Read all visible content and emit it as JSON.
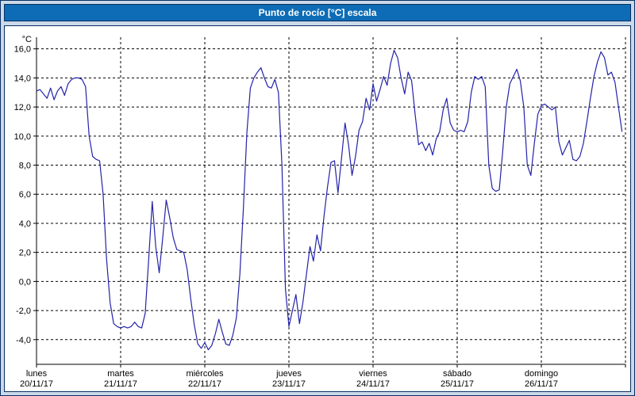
{
  "window": {
    "title": "Punto de rocío [°C] escala"
  },
  "colors": {
    "outer_background": "#cbd9e8",
    "titlebar_background": "#0d6cb5",
    "titlebar_text": "#ffffff",
    "panel_background": "#ffffff",
    "border": "#0a2f63",
    "line": "#2323aa",
    "grid": "#000000"
  },
  "chart_data": {
    "type": "line",
    "title": "Punto de rocío [°C] escala",
    "y_unit_label": "°C",
    "legend": "none",
    "grid": {
      "style": "dashed",
      "color": "#000000"
    },
    "y_axis": {
      "min": -5.7,
      "max": 16.8,
      "tick_values": [
        16,
        14,
        12,
        10,
        8,
        6,
        4,
        2,
        0,
        -2,
        -4
      ],
      "tick_labels": [
        "16,0",
        "14,0",
        "12,0",
        "10,0",
        "8,0",
        "6,0",
        "4,0",
        "2,0",
        "0,0",
        "-2,0",
        "-4,0"
      ]
    },
    "x_axis": {
      "range_days": [
        0,
        7
      ],
      "days": [
        {
          "name": "lunes",
          "date": "20/11/17"
        },
        {
          "name": "martes",
          "date": "21/11/17"
        },
        {
          "name": "miércoles",
          "date": "22/11/17"
        },
        {
          "name": "jueves",
          "date": "23/11/17"
        },
        {
          "name": "viernes",
          "date": "24/11/17"
        },
        {
          "name": "sábado",
          "date": "25/11/17"
        },
        {
          "name": "domingo",
          "date": "26/11/17"
        }
      ]
    },
    "series": [
      {
        "name": "Punto de rocío",
        "color": "#2323aa",
        "samples_per_day": 24,
        "values": [
          13.1,
          13.2,
          12.9,
          12.6,
          13.3,
          12.5,
          13.1,
          13.4,
          12.8,
          13.6,
          13.9,
          14.0,
          14.0,
          13.9,
          13.4,
          10.0,
          8.6,
          8.4,
          8.3,
          6.0,
          1.5,
          -1.5,
          -2.9,
          -3.1,
          -3.2,
          -3.1,
          -3.2,
          -3.1,
          -2.8,
          -3.1,
          -3.2,
          -2.2,
          1.5,
          5.5,
          2.4,
          0.6,
          3.0,
          5.6,
          4.4,
          3.0,
          2.2,
          2.1,
          2.0,
          0.8,
          -1.2,
          -3.0,
          -4.3,
          -4.6,
          -4.2,
          -4.7,
          -4.4,
          -3.6,
          -2.6,
          -3.5,
          -4.3,
          -4.4,
          -3.7,
          -2.5,
          0.5,
          5.0,
          10.2,
          13.3,
          14.0,
          14.4,
          14.7,
          14.0,
          13.4,
          13.3,
          13.9,
          13.0,
          8.0,
          -0.5,
          -3.1,
          -2.0,
          -0.9,
          -2.9,
          -1.4,
          0.5,
          2.4,
          1.4,
          3.2,
          2.1,
          4.5,
          6.5,
          8.2,
          8.3,
          6.1,
          8.5,
          10.9,
          9.4,
          7.3,
          8.6,
          10.4,
          11.0,
          12.6,
          11.8,
          13.6,
          12.4,
          13.2,
          14.1,
          13.5,
          15.0,
          15.9,
          15.4,
          14.0,
          12.9,
          14.4,
          13.8,
          11.5,
          9.4,
          9.6,
          9.0,
          9.5,
          8.7,
          9.8,
          10.3,
          11.8,
          12.6,
          10.9,
          10.4,
          10.3,
          10.4,
          10.3,
          11.0,
          13.0,
          14.1,
          13.9,
          14.1,
          13.4,
          8.0,
          6.4,
          6.2,
          6.3,
          9.0,
          12.0,
          13.6,
          14.1,
          14.6,
          13.8,
          12.0,
          8.0,
          7.3,
          9.5,
          11.5,
          12.1,
          12.2,
          12.0,
          11.8,
          12.0,
          9.6,
          8.7,
          9.2,
          9.7,
          8.4,
          8.3,
          8.6,
          9.5,
          11.0,
          12.6,
          14.1,
          15.1,
          15.8,
          15.4,
          14.2,
          14.4,
          13.7,
          12.0,
          10.3
        ]
      }
    ]
  }
}
